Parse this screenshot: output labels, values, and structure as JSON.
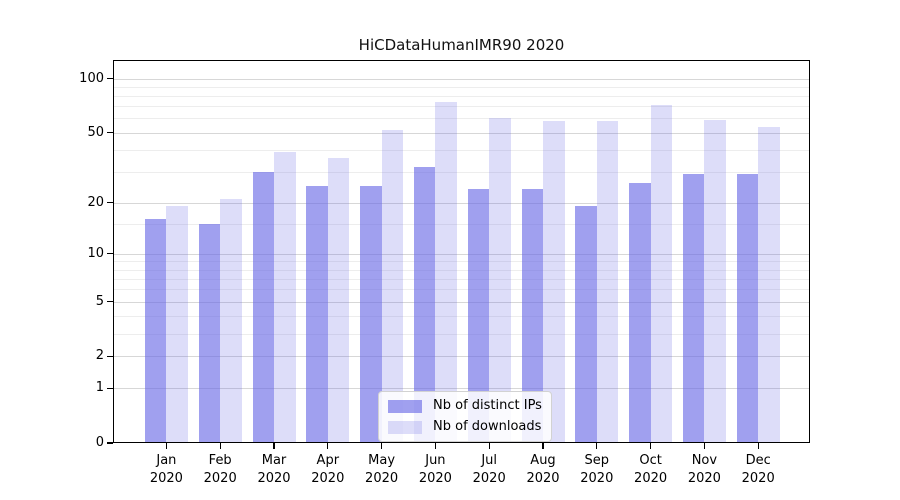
{
  "title": "HiCDataHumanIMR90 2020",
  "colors": {
    "bar_dark": "rgba(101,101,229,0.62)",
    "bar_light": "rgba(101,101,229,0.22)",
    "grid_major": "#d7d7d7",
    "grid_minor": "#ededed",
    "axis": "#000000",
    "legend_border": "#d2d2d2"
  },
  "chart_data": {
    "type": "bar",
    "title": "HiCDataHumanIMR90 2020",
    "categories": [
      "Jan 2020",
      "Feb 2020",
      "Mar 2020",
      "Apr 2020",
      "May 2020",
      "Jun 2020",
      "Jul 2020",
      "Aug 2020",
      "Sep 2020",
      "Oct 2020",
      "Nov 2020",
      "Dec 2020"
    ],
    "series": [
      {
        "name": "Nb of distinct IPs",
        "values": [
          16,
          15,
          30,
          25,
          25,
          32,
          24,
          24,
          19,
          26,
          29,
          29
        ],
        "swatch": "bar_dark"
      },
      {
        "name": "Nb of downloads",
        "values": [
          19,
          21,
          39,
          36,
          52,
          74,
          60,
          58,
          58,
          71,
          59,
          54
        ],
        "swatch": "bar_light"
      }
    ],
    "xlabel": "",
    "ylabel": "",
    "yscale": "log1p",
    "yticks": [
      0,
      1,
      2,
      5,
      10,
      20,
      50,
      100
    ],
    "yticks_minor": [
      3,
      4,
      6,
      7,
      8,
      9,
      15,
      30,
      40,
      60,
      70,
      80,
      90
    ],
    "ylim": [
      0,
      127
    ],
    "grid": true,
    "legend_position": "lower center"
  }
}
